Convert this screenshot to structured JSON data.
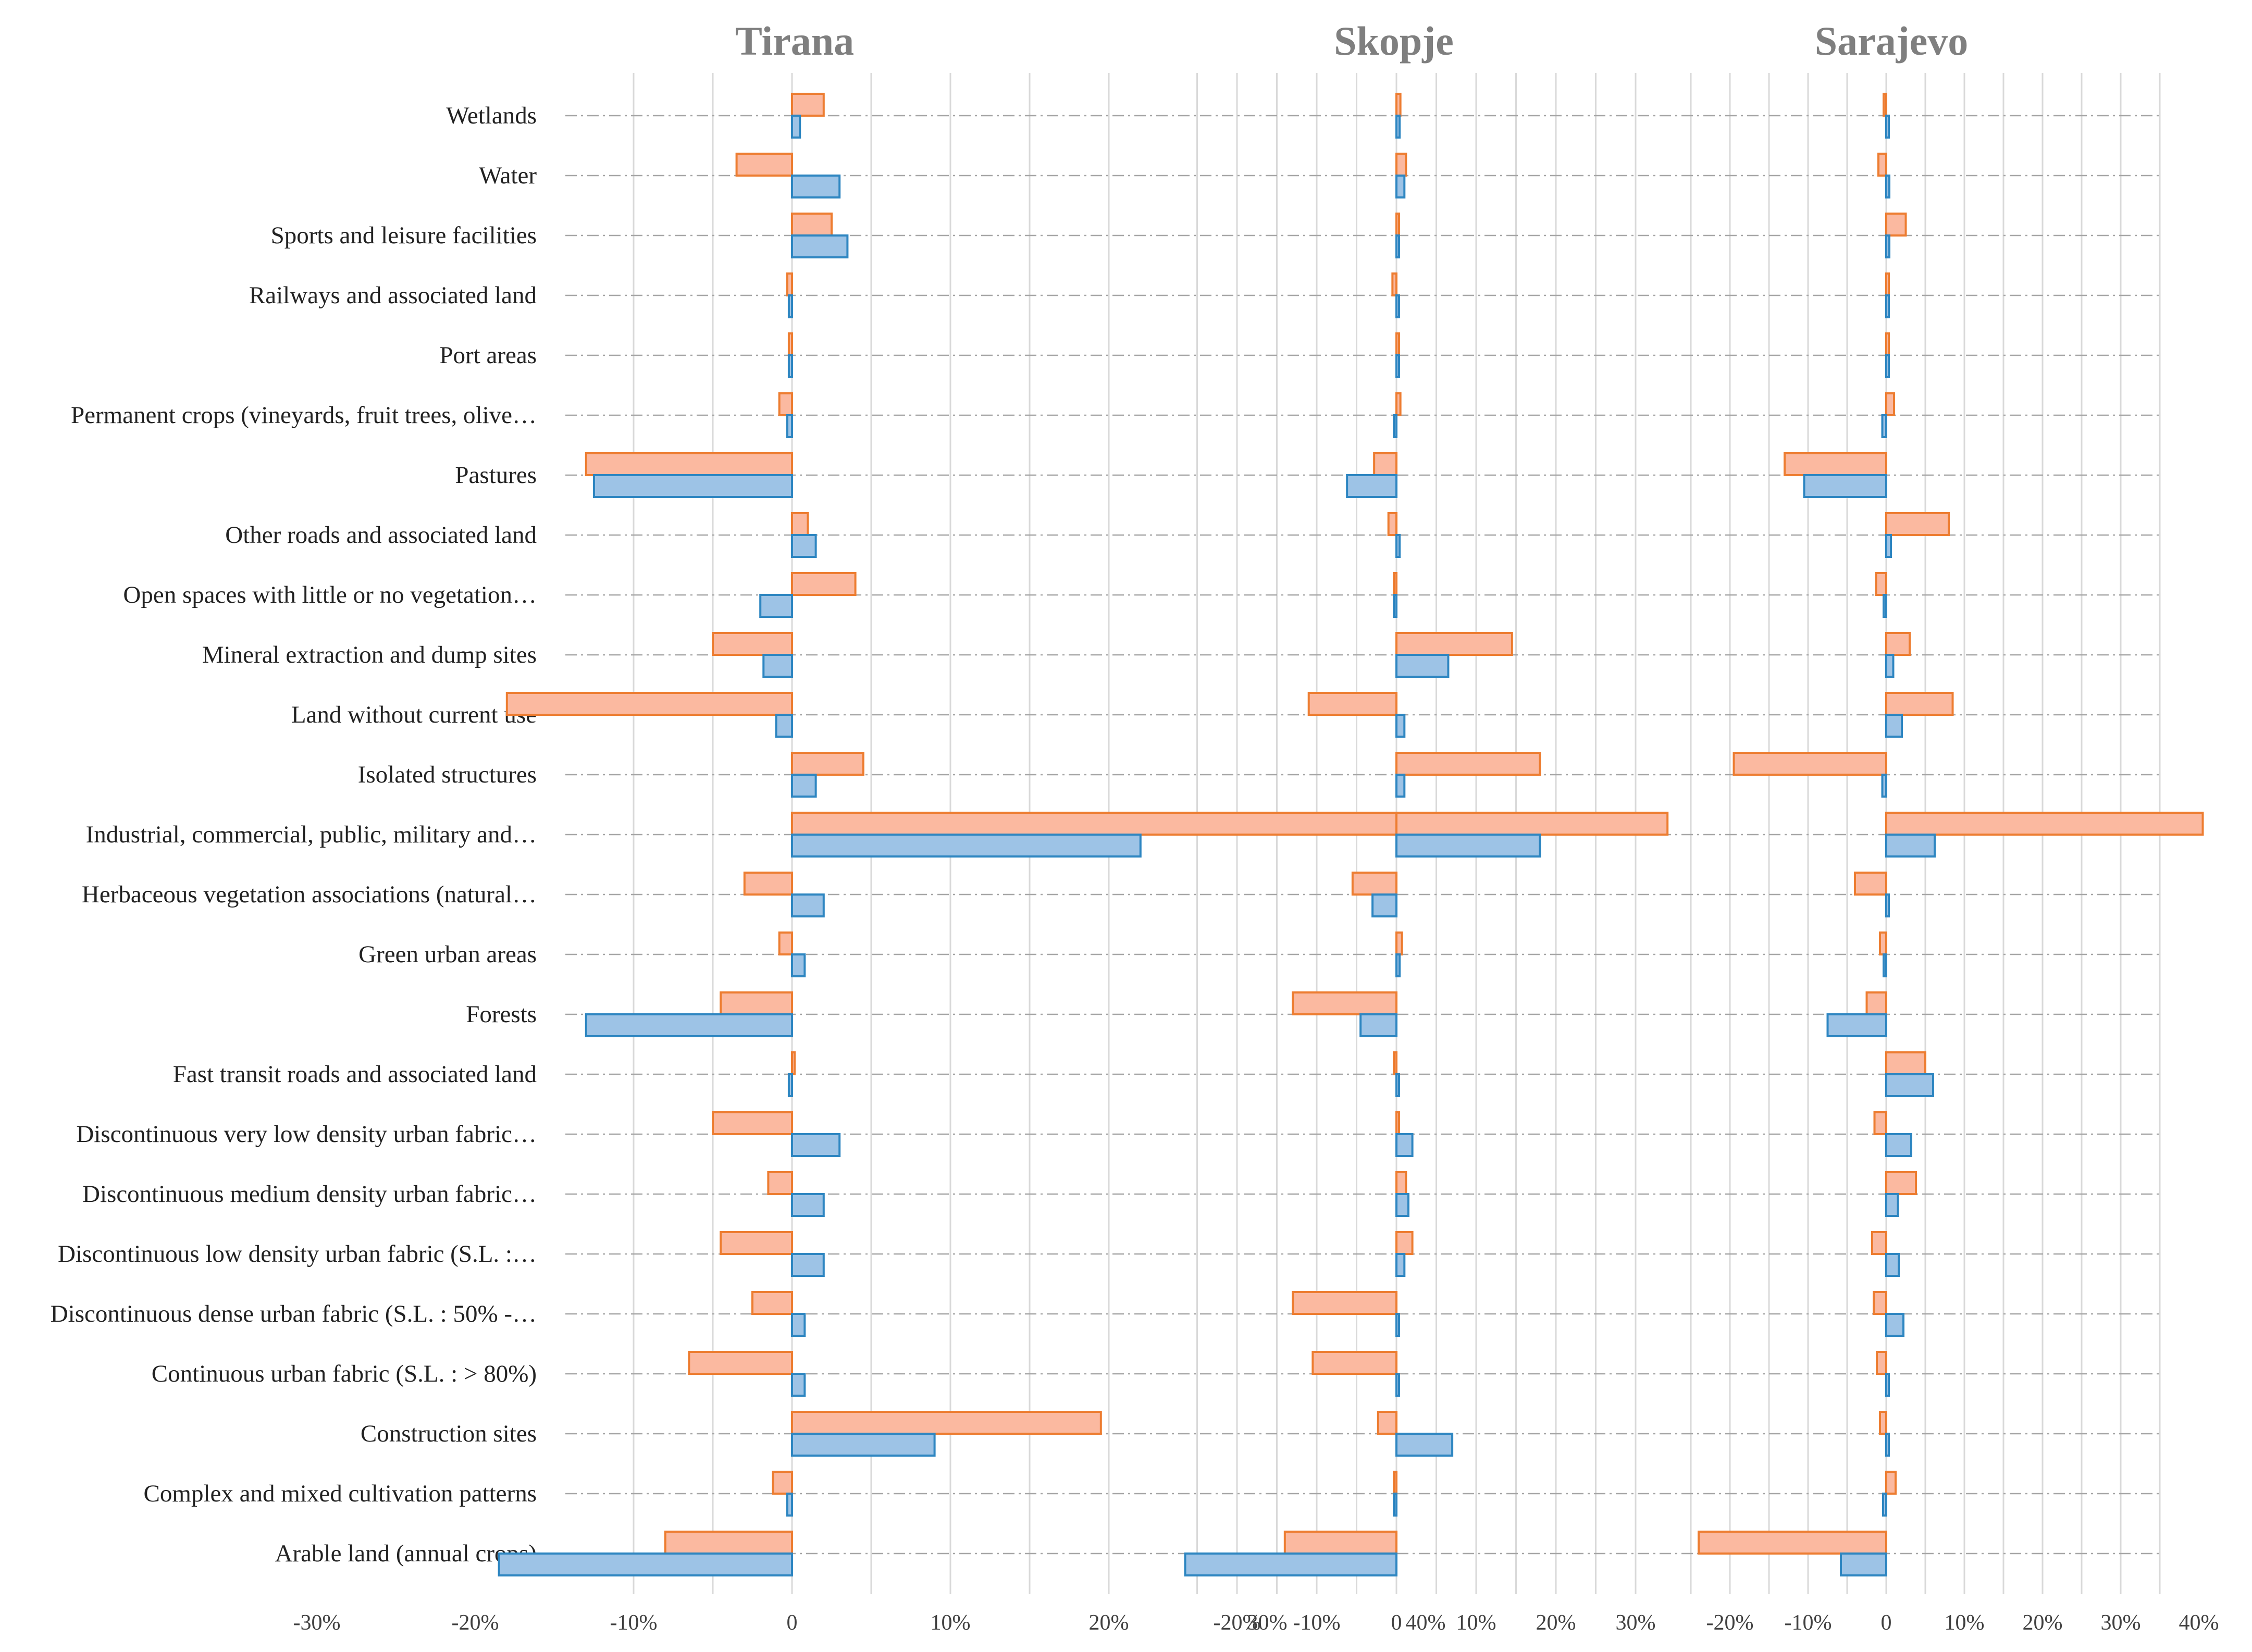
{
  "chart_data": {
    "type": "bar",
    "orientation": "horizontal",
    "categories": [
      "Wetlands",
      "Water",
      "Sports and leisure facilities",
      "Railways and associated land",
      "Port areas",
      "Permanent crops (vineyards, fruit trees, olive…",
      "Pastures",
      "Other roads and associated land",
      "Open spaces with little or no vegetation…",
      "Mineral extraction and dump sites",
      "Land without current use",
      "Isolated structures",
      "Industrial, commercial, public, military and…",
      "Herbaceous vegetation associations (natural…",
      "Green urban areas",
      "Forests",
      "Fast transit roads and associated land",
      "Discontinuous very low density urban fabric…",
      "Discontinuous medium density urban fabric…",
      "Discontinuous low density urban fabric (S.L. :…",
      "Discontinuous dense urban fabric (S.L. : 50% -…",
      "Continuous urban fabric (S.L. : > 80%)",
      "Construction sites",
      "Complex and mixed cultivation patterns",
      "Arable land (annual crops)"
    ],
    "series_colors": {
      "orange_fill": "#fbb9a0",
      "orange_stroke": "#ed7d31",
      "blue_fill": "#9dc3e6",
      "blue_stroke": "#2e86c1"
    },
    "panels": [
      {
        "title": "Tirana",
        "xlim": [
          -30,
          50
        ],
        "tick_labels": [
          "-30%",
          "-20%",
          "-10%",
          "0",
          "10%",
          "20%",
          "30%",
          "40%"
        ],
        "tick_values": [
          -30,
          -20,
          -10,
          0,
          10,
          20,
          30,
          40
        ],
        "series": [
          {
            "name": "orange",
            "values": [
              2,
              -3.5,
              2.5,
              -0.3,
              -0.2,
              -0.8,
              -13,
              1,
              4,
              -5,
              -18,
              4.5,
              47,
              -3,
              -0.8,
              -4.5,
              0,
              -5,
              -1.5,
              -4.5,
              -2.5,
              -6.5,
              19.5,
              -1.2,
              -8
            ]
          },
          {
            "name": "blue",
            "values": [
              0.5,
              3,
              3.5,
              -0.2,
              -0.2,
              -0.3,
              -12.5,
              1.5,
              -2,
              -1.8,
              -1,
              1.5,
              22,
              2,
              0.8,
              -13,
              -0.2,
              3,
              2,
              2,
              0.8,
              0.8,
              9,
              -0.3,
              -18.5
            ]
          }
        ]
      },
      {
        "title": "Skopje",
        "xlim": [
          -27,
          45
        ],
        "tick_labels": [
          "-20%",
          "-10%",
          "0",
          "10%",
          "20%",
          "30%"
        ],
        "tick_values": [
          -20,
          -10,
          0,
          10,
          20,
          30
        ],
        "series": [
          {
            "name": "orange",
            "values": [
              0.5,
              1.2,
              0.3,
              -0.5,
              0,
              0.5,
              -2.8,
              -1,
              -0.2,
              14.5,
              -11,
              18,
              34,
              -5.5,
              0.7,
              -13,
              -0.2,
              0.3,
              1.2,
              2,
              -13,
              -10.5,
              -2.3,
              -0.3,
              -14
            ]
          },
          {
            "name": "blue",
            "values": [
              0.4,
              1,
              0.2,
              0,
              0,
              -0.2,
              -6.2,
              0.4,
              -0.2,
              6.5,
              1,
              1,
              18,
              -3,
              0.4,
              -4.5,
              0,
              2,
              1.5,
              1,
              0.3,
              0.3,
              7,
              -0.2,
              -26.5
            ]
          }
        ]
      },
      {
        "title": "Sarajevo",
        "xlim": [
          -28,
          41
        ],
        "tick_labels": [
          "-20%",
          "-10%",
          "0",
          "10%",
          "20%",
          "30%",
          "40%"
        ],
        "tick_values": [
          -20,
          -10,
          0,
          10,
          20,
          30,
          40
        ],
        "series": [
          {
            "name": "orange",
            "values": [
              -0.2,
              -1,
              2.5,
              0.3,
              0,
              1,
              -13,
              8,
              -1.3,
              3,
              8.5,
              -19.5,
              40.5,
              -4,
              -0.8,
              -2.5,
              5,
              -1.5,
              3.8,
              -1.8,
              -1.6,
              -1.2,
              -0.8,
              1.2,
              -24
            ]
          },
          {
            "name": "blue",
            "values": [
              0,
              0.4,
              0.4,
              0.2,
              0,
              -0.5,
              -10.5,
              0.6,
              -0.3,
              0.9,
              2,
              -0.5,
              6.2,
              0.2,
              -0.2,
              -7.5,
              6,
              3.2,
              1.5,
              1.6,
              2.2,
              0.2,
              0.3,
              -0.4,
              -5.8
            ]
          }
        ]
      }
    ]
  }
}
